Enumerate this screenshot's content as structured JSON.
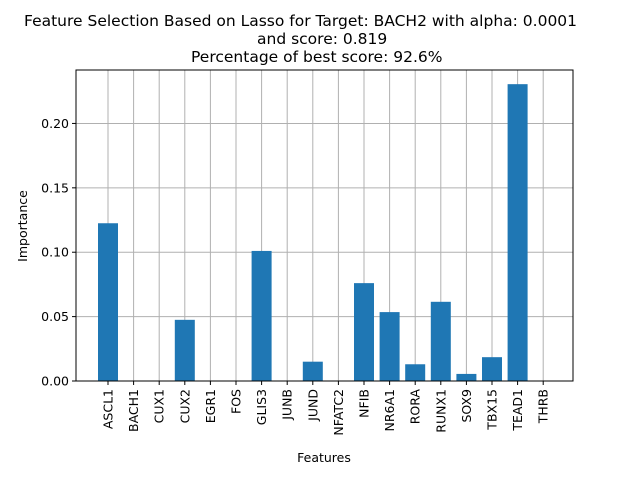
{
  "chart_data": {
    "type": "bar",
    "title_lines": [
      "Feature Selection Based on Lasso for Target: BACH2 with alpha: 0.0001",
      "and score: 0.819",
      "Percentage of best score: 92.6%"
    ],
    "xlabel": "Features",
    "ylabel": "Importance",
    "categories": [
      "ASCL1",
      "BACH1",
      "CUX1",
      "CUX2",
      "EGR1",
      "FOS",
      "GLIS3",
      "JUNB",
      "JUND",
      "NFATC2",
      "NFIB",
      "NR6A1",
      "RORA",
      "RUNX1",
      "SOX9",
      "TBX15",
      "TEAD1",
      "THRB"
    ],
    "values": [
      0.1225,
      0.0,
      0.0,
      0.0475,
      0.0,
      0.0,
      0.101,
      0.0,
      0.015,
      0.0,
      0.076,
      0.0535,
      0.013,
      0.0615,
      0.0055,
      0.0185,
      0.2305,
      0.0
    ],
    "ylim": [
      0,
      0.2415
    ],
    "yticks": [
      0.0,
      0.05,
      0.1,
      0.15,
      0.2
    ],
    "ytick_labels": [
      "0.00",
      "0.05",
      "0.10",
      "0.15",
      "0.20"
    ],
    "grid": true,
    "bar_color": "#1f77b4",
    "grid_color": "#b0b0b0"
  }
}
